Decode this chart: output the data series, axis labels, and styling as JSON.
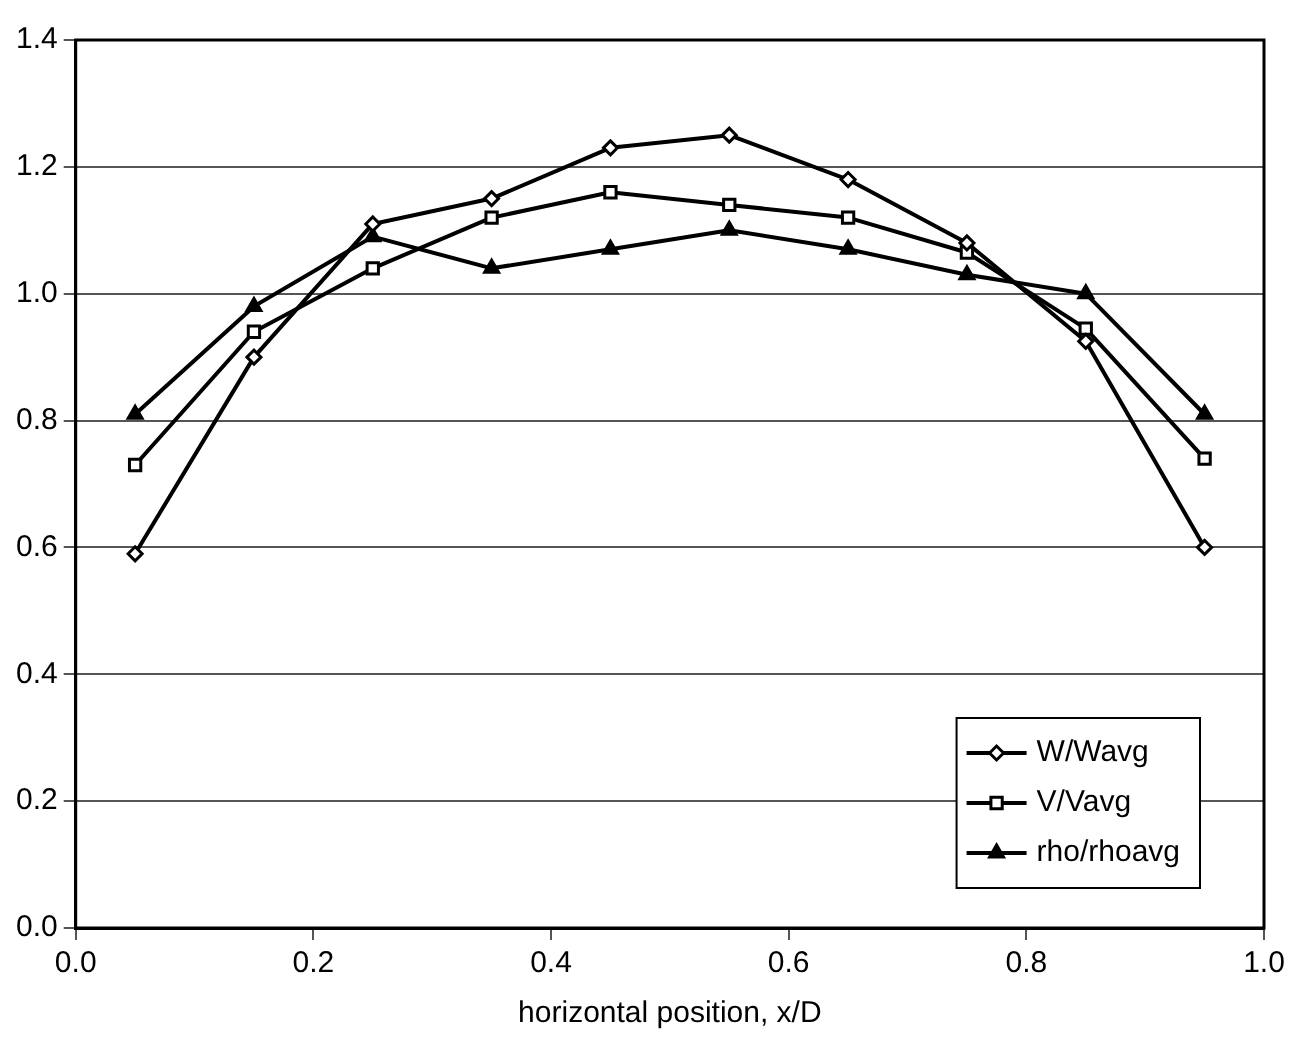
{
  "chart_data": {
    "type": "line",
    "xlabel": "horizontal position, x/D",
    "x": [
      0.05,
      0.15,
      0.25,
      0.35,
      0.45,
      0.55,
      0.65,
      0.75,
      0.85,
      0.95
    ],
    "series": [
      {
        "name": "W/Wavg",
        "color": "#000000",
        "marker": "diamond",
        "values": [
          0.59,
          0.9,
          1.11,
          1.15,
          1.23,
          1.25,
          1.18,
          1.08,
          0.925,
          0.6
        ]
      },
      {
        "name": "V/Vavg",
        "color": "#000000",
        "marker": "square",
        "values": [
          0.73,
          0.94,
          1.04,
          1.12,
          1.16,
          1.14,
          1.12,
          1.065,
          0.945,
          0.74
        ]
      },
      {
        "name": "rho/rhoavg",
        "color": "#000000",
        "marker": "triangle",
        "values": [
          0.81,
          0.98,
          1.09,
          1.04,
          1.07,
          1.1,
          1.07,
          1.03,
          1.0,
          0.81
        ]
      }
    ],
    "xlim": [
      0,
      1
    ],
    "xticks": [
      {
        "value": 0,
        "label": "0.0"
      },
      0.2,
      0.4,
      0.6,
      0.8,
      {
        "value": 1,
        "label": "1.0"
      }
    ],
    "ylim": [
      0,
      1.4
    ],
    "yticks": [
      {
        "value": 0,
        "label": "0.0"
      },
      0.2,
      0.4,
      0.6,
      0.8,
      {
        "value": 1,
        "label": "1.0"
      },
      1.2,
      1.4
    ],
    "grid": "y",
    "legend": "bottom right",
    "line_style": "solid"
  }
}
